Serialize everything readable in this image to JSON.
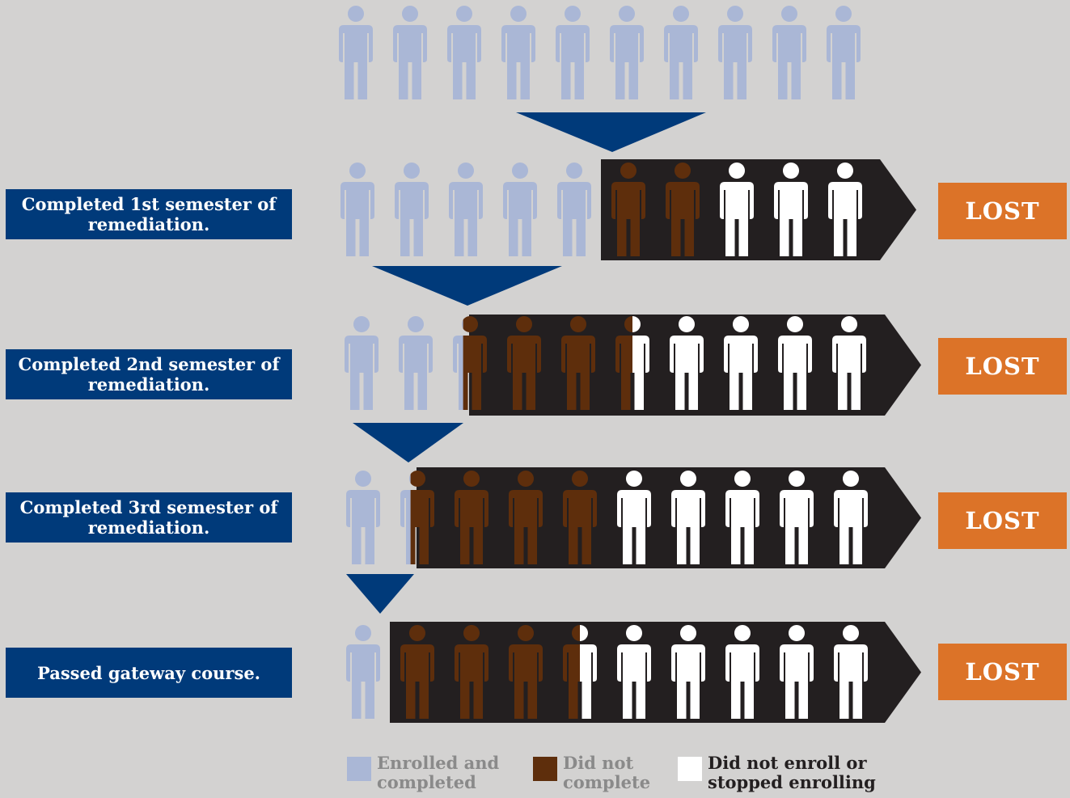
{
  "colors": {
    "background": "#d3d2d1",
    "enrolled_completed": "#aab7d6",
    "did_not_complete": "#5e2e0c",
    "did_not_enroll": "#ffffff",
    "band": "#231f20",
    "funnel": "#003a7a",
    "label_bg": "#003a7a",
    "lost_bg": "#dc7328"
  },
  "stages": [
    {
      "label": "",
      "enrolled": 10,
      "did_not_complete": 0,
      "did_not_enroll": 0,
      "lost_label": ""
    },
    {
      "label": "Completed 1st semester of remediation.",
      "enrolled": 5,
      "did_not_complete": 2,
      "did_not_enroll": 3,
      "lost_label": "LOST"
    },
    {
      "label": "Completed 2nd semester of remediation.",
      "enrolled": 2.3,
      "did_not_complete": 3.2,
      "did_not_enroll": 4.5,
      "lost_label": "LOST"
    },
    {
      "label": "Completed 3rd semester of remediation.",
      "enrolled": 1.3,
      "did_not_complete": 3.7,
      "did_not_enroll": 5,
      "lost_label": "LOST"
    },
    {
      "label": "Passed gateway course.",
      "enrolled": 1,
      "did_not_complete": 3.5,
      "did_not_enroll": 5.5,
      "lost_label": "LOST"
    }
  ],
  "legend": [
    {
      "key": "enrolled_completed",
      "text_line1": "Enrolled and",
      "text_line2": "completed",
      "text_color": "#8a8a8a"
    },
    {
      "key": "did_not_complete",
      "text_line1": "Did not",
      "text_line2": "complete",
      "text_color": "#8a8a8a"
    },
    {
      "key": "did_not_enroll",
      "text_line1": "Did not enroll or",
      "text_line2": "stopped enrolling",
      "text_color": "#231f20"
    }
  ]
}
